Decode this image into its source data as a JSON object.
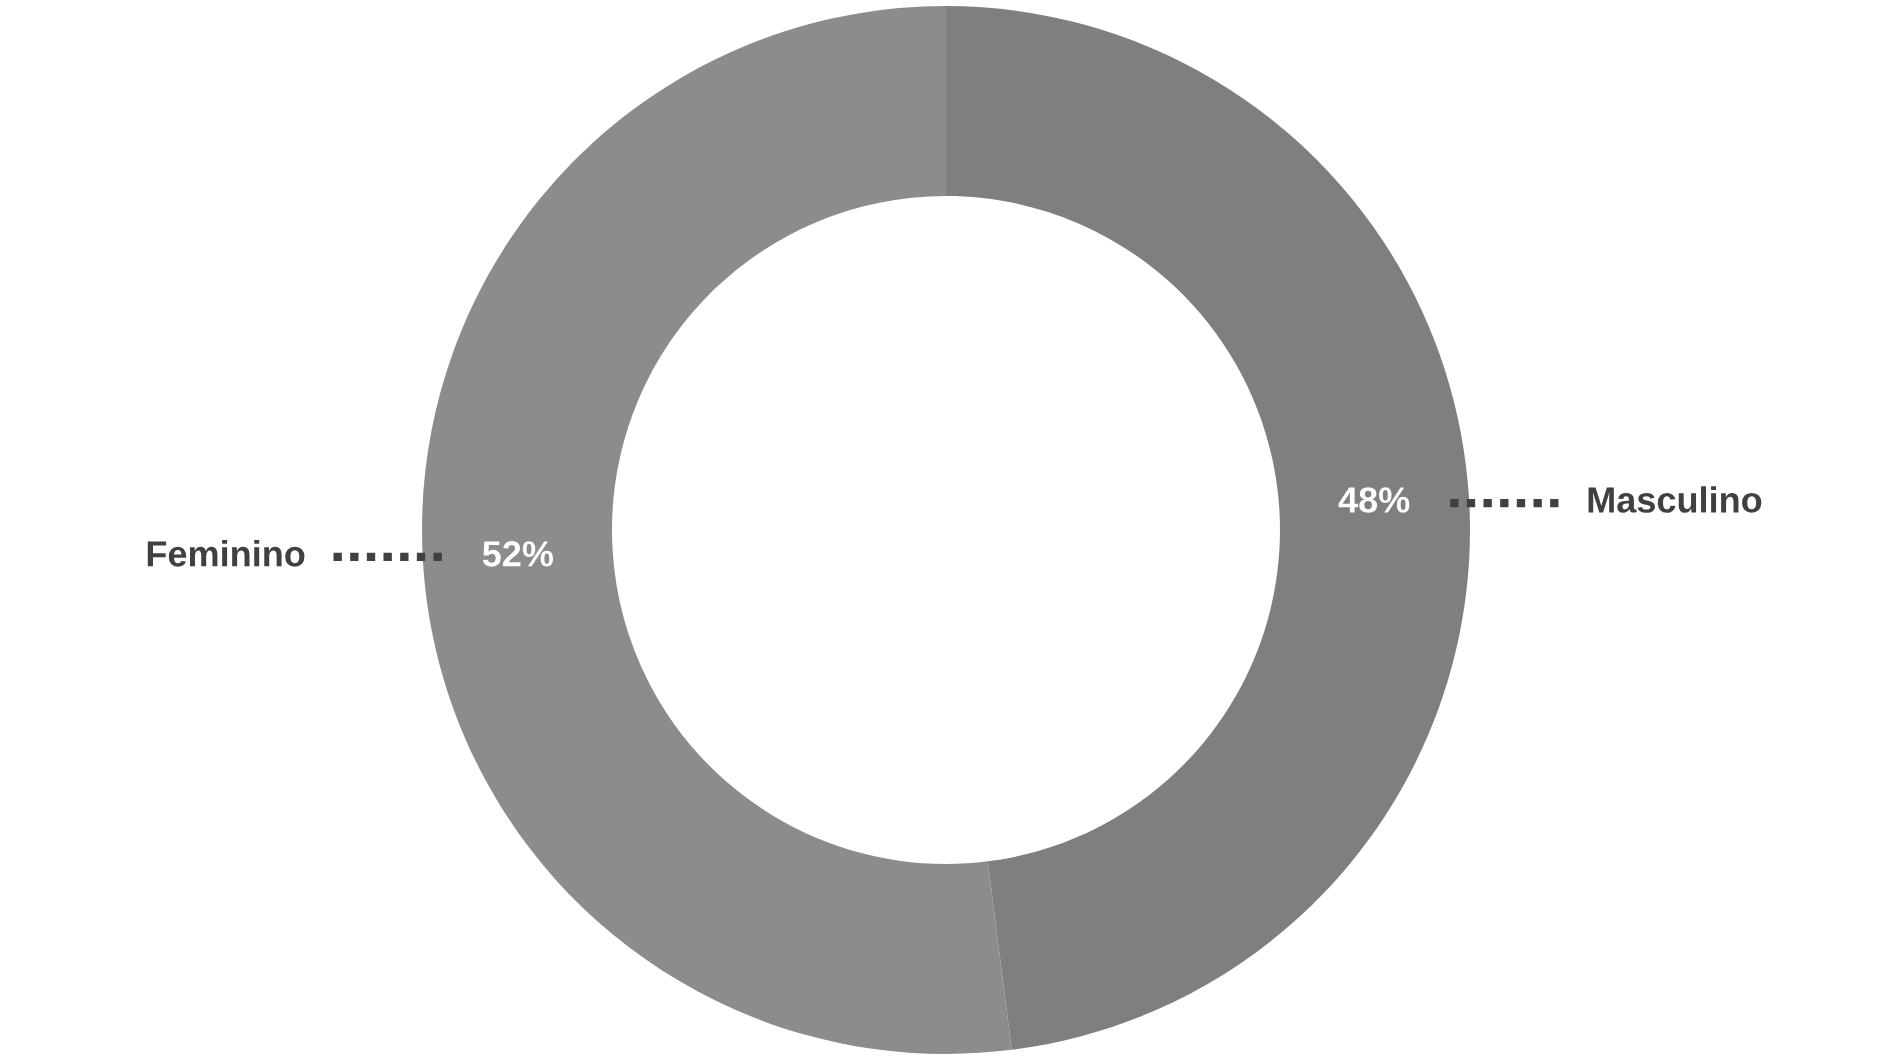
{
  "chart_data": {
    "type": "donut",
    "categories": [
      "Masculino",
      "Feminino"
    ],
    "values": [
      48,
      52
    ],
    "colors": [
      "#7f7f7f",
      "#8c8c8c"
    ],
    "value_labels": [
      "48%",
      "52%"
    ],
    "legend": false
  }
}
